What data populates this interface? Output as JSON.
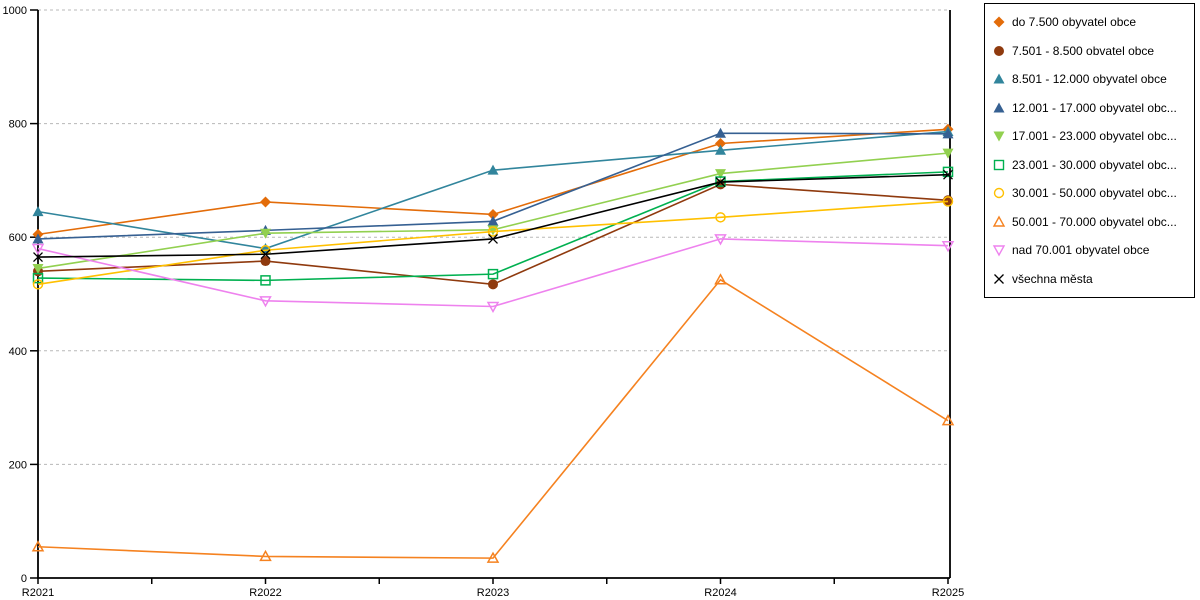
{
  "chart_data": {
    "type": "line",
    "title": "",
    "xlabel": "",
    "ylabel": "",
    "categories": [
      "R2021",
      "R2022",
      "R2023",
      "R2024",
      "R2025"
    ],
    "ylim": [
      0,
      1000
    ],
    "yticks": [
      0,
      200,
      400,
      600,
      800,
      1000
    ],
    "grid": "horizontal-dashed",
    "legend_position": "right",
    "gridline_color": "#b8b8b8",
    "axis_color": "#000000",
    "series": [
      {
        "name": "do 7.500 obyvatel obce",
        "color": "#e36c09",
        "marker": "diamond-filled",
        "values": [
          605,
          662,
          640,
          765,
          790
        ]
      },
      {
        "name": "7.501 - 8.500 obvatel obce",
        "color": "#8f3a0e",
        "marker": "circle-filled",
        "values": [
          540,
          558,
          517,
          693,
          665
        ]
      },
      {
        "name": "8.501 - 12.000 obyvatel obce",
        "color": "#31859c",
        "marker": "triangle-up-filled",
        "values": [
          645,
          580,
          718,
          753,
          786
        ]
      },
      {
        "name": "12.001 - 17.000 obyvatel obc...",
        "color": "#366092",
        "marker": "triangle-up-filled",
        "values": [
          597,
          612,
          628,
          783,
          782
        ]
      },
      {
        "name": "17.001 - 23.000 obyvatel obc...",
        "color": "#92d050",
        "marker": "triangle-down-filled",
        "values": [
          545,
          607,
          613,
          712,
          748
        ]
      },
      {
        "name": "23.001 - 30.000 obyvatel obc...",
        "color": "#00b050",
        "marker": "square-open",
        "values": [
          528,
          524,
          535,
          698,
          715
        ]
      },
      {
        "name": "30.001 - 50.000 obyvatel obc...",
        "color": "#ffc000",
        "marker": "circle-open",
        "values": [
          517,
          577,
          610,
          635,
          663
        ]
      },
      {
        "name": "50.001 - 70.000 obyvatel obc...",
        "color": "#f58220",
        "marker": "triangle-up-open",
        "values": [
          55,
          38,
          35,
          525,
          277
        ]
      },
      {
        "name": "nad 70.001 obyvatel obce",
        "color": "#ee82ee",
        "marker": "triangle-down-open",
        "values": [
          580,
          488,
          478,
          597,
          585
        ]
      },
      {
        "name": "všechna města",
        "color": "#000000",
        "marker": "x",
        "values": [
          565,
          570,
          597,
          697,
          710
        ]
      }
    ]
  }
}
